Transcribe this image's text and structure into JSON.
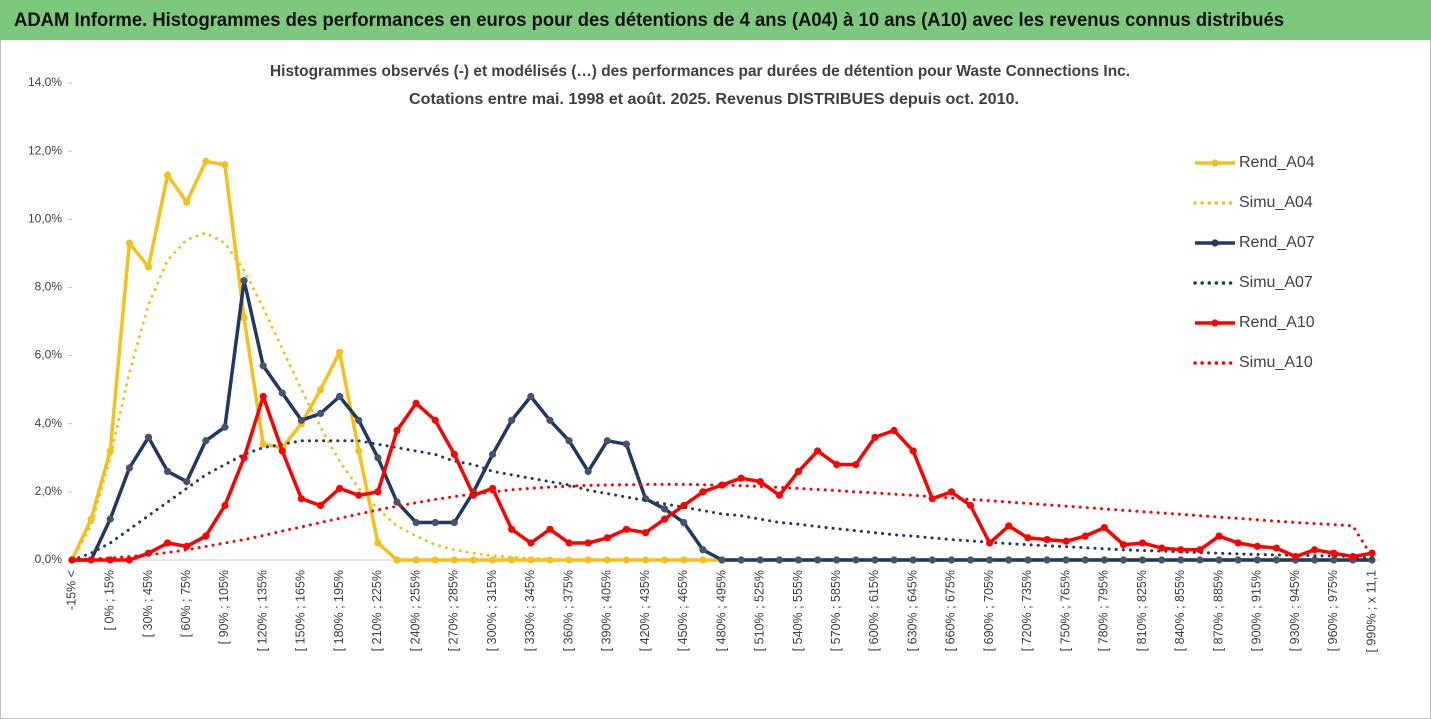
{
  "chart_data": {
    "type": "line",
    "title": "ADAM Informe. Histogrammes des performances en euros pour des détentions de 4 ans (A04) à 10 ans (A10) avec les revenus connus distribués",
    "subtitle": [
      "Histogrammes observés (-) et modélisés (…) des performances par durées de détention pour Waste Connections Inc.",
      "Cotations entre mai. 1998 et août. 2025. Revenus DISTRIBUES depuis oct. 2010."
    ],
    "categories": [
      "-15% <",
      null,
      "[ 0% ; 15%",
      null,
      "[ 30% ; 45%",
      null,
      "[ 60% ; 75%",
      null,
      "[ 90% ; 105%",
      null,
      "[ 120% ; 135%",
      null,
      "[ 150% ; 165%",
      null,
      "[ 180% ; 195%",
      null,
      "[ 210% ; 225%",
      null,
      "[ 240% ; 255%",
      null,
      "[ 270% ; 285%",
      null,
      "[ 300% ; 315%",
      null,
      "[ 330% ; 345%",
      null,
      "[ 360% ; 375%",
      null,
      "[ 390% ; 405%",
      null,
      "[ 420% ; 435%",
      null,
      "[ 450% ; 465%",
      null,
      "[ 480% ; 495%",
      null,
      "[ 510% ; 525%",
      null,
      "[ 540% ; 555%",
      null,
      "[ 570% ; 585%",
      null,
      "[ 600% ; 615%",
      null,
      "[ 630% ; 645%",
      null,
      "[ 660% ; 675%",
      null,
      "[ 690% ; 705%",
      null,
      "[ 720% ; 735%",
      null,
      "[ 750% ; 765%",
      null,
      "[ 780% ; 795%",
      null,
      "[ 810% ; 825%",
      null,
      "[ 840% ; 855%",
      null,
      "[ 870% ; 885%",
      null,
      "[ 900% ; 915%",
      null,
      "[ 930% ; 945%",
      null,
      "[ 960% ; 975%",
      null,
      "[ 990% ; x 11,1"
    ],
    "ylim": [
      0,
      14
    ],
    "yticks": [
      {
        "value": 0,
        "label": "0,0%"
      },
      {
        "value": 2,
        "label": "2,0%"
      },
      {
        "value": 4,
        "label": "4,0%"
      },
      {
        "value": 6,
        "label": "6,0%"
      },
      {
        "value": 8,
        "label": "8,0%"
      },
      {
        "value": 10,
        "label": "10,0%"
      },
      {
        "value": 12,
        "label": "12,0%"
      },
      {
        "value": 14,
        "label": "14,0%"
      }
    ],
    "legend": "right",
    "series": [
      {
        "name": "Rend_A04",
        "color": "#f5c01a",
        "style": "solid",
        "markers": true,
        "values": [
          0,
          1.2,
          3.2,
          9.3,
          8.6,
          11.3,
          10.5,
          11.7,
          11.6,
          7.1,
          3.4,
          3.3,
          4.0,
          5.0,
          6.1,
          3.2,
          0.5,
          0,
          0,
          0,
          0,
          0,
          0,
          0,
          0,
          0,
          0,
          0,
          0,
          0,
          0,
          0,
          0,
          0,
          0,
          0,
          0,
          0,
          0,
          0,
          0,
          0,
          0,
          0,
          0,
          0,
          0,
          0,
          0,
          0,
          0,
          0,
          0,
          0,
          0,
          0,
          0,
          0,
          0,
          0,
          0,
          0,
          0,
          0,
          0,
          0,
          0,
          0,
          0
        ]
      },
      {
        "name": "Simu_A04",
        "color": "#f5c01a",
        "style": "dotted",
        "markers": false,
        "values": [
          0,
          1.0,
          3.0,
          5.5,
          7.5,
          8.8,
          9.4,
          9.6,
          9.3,
          8.5,
          7.4,
          6.2,
          5.0,
          3.9,
          2.9,
          2.1,
          1.5,
          1.0,
          0.7,
          0.45,
          0.3,
          0.2,
          0.12,
          0.08,
          0.05,
          0.03,
          0,
          0,
          0,
          0,
          0,
          0,
          0,
          0,
          0,
          0,
          0,
          0,
          0,
          0,
          0,
          0,
          0,
          0,
          0,
          0,
          0,
          0,
          0,
          0,
          0,
          0,
          0,
          0,
          0,
          0,
          0,
          0,
          0,
          0,
          0,
          0,
          0,
          0,
          0,
          0,
          0,
          0,
          0
        ]
      },
      {
        "name": "Rend_A07",
        "color": "#1f3864",
        "style": "solid",
        "markers": true,
        "values": [
          0,
          0,
          1.2,
          2.7,
          3.6,
          2.6,
          2.3,
          3.5,
          3.9,
          8.2,
          5.7,
          4.9,
          4.1,
          4.3,
          4.8,
          4.1,
          3.0,
          1.7,
          1.1,
          1.1,
          1.1,
          2.0,
          3.1,
          4.1,
          4.8,
          4.1,
          3.5,
          2.6,
          3.5,
          3.4,
          1.8,
          1.5,
          1.1,
          0.3,
          0,
          0,
          0,
          0,
          0,
          0,
          0,
          0,
          0,
          0,
          0,
          0,
          0,
          0,
          0,
          0,
          0,
          0,
          0,
          0,
          0,
          0,
          0,
          0,
          0,
          0,
          0,
          0,
          0,
          0,
          0,
          0,
          0,
          0,
          0
        ]
      },
      {
        "name": "Simu_A07",
        "color": "#1f3864",
        "style": "dotted",
        "markers": false,
        "values": [
          0,
          0.2,
          0.5,
          0.9,
          1.3,
          1.7,
          2.1,
          2.5,
          2.8,
          3.1,
          3.3,
          3.4,
          3.5,
          3.5,
          3.5,
          3.5,
          3.4,
          3.3,
          3.2,
          3.1,
          2.9,
          2.8,
          2.6,
          2.5,
          2.4,
          2.3,
          2.2,
          2.05,
          1.95,
          1.85,
          1.75,
          1.65,
          1.55,
          1.45,
          1.35,
          1.3,
          1.2,
          1.1,
          1.05,
          0.98,
          0.92,
          0.86,
          0.8,
          0.74,
          0.7,
          0.65,
          0.6,
          0.56,
          0.52,
          0.48,
          0.45,
          0.42,
          0.39,
          0.36,
          0.33,
          0.3,
          0.28,
          0.26,
          0.24,
          0.22,
          0.2,
          0.18,
          0.16,
          0.15,
          0.14,
          0.13,
          0.12,
          0.1,
          0.05
        ]
      },
      {
        "name": "Rend_A10",
        "color": "#ff0000",
        "style": "solid",
        "markers": true,
        "values": [
          0,
          0,
          0,
          0,
          0.2,
          0.5,
          0.4,
          0.7,
          1.6,
          3.0,
          4.8,
          3.2,
          1.8,
          1.6,
          2.1,
          1.9,
          2.0,
          3.8,
          4.6,
          4.1,
          3.1,
          1.9,
          2.1,
          0.9,
          0.5,
          0.9,
          0.5,
          0.5,
          0.65,
          0.9,
          0.8,
          1.2,
          1.6,
          2.0,
          2.2,
          2.4,
          2.3,
          1.9,
          2.6,
          3.2,
          2.8,
          2.8,
          3.6,
          3.8,
          3.2,
          1.8,
          2.0,
          1.6,
          0.5,
          1.0,
          0.65,
          0.6,
          0.55,
          0.7,
          0.95,
          0.45,
          0.5,
          0.35,
          0.3,
          0.3,
          0.7,
          0.5,
          0.4,
          0.35,
          0.1,
          0.3,
          0.2,
          0.1,
          0.2
        ]
      },
      {
        "name": "Simu_A10",
        "color": "#ff0000",
        "style": "dotted",
        "markers": false,
        "values": [
          0,
          0.03,
          0.06,
          0.1,
          0.15,
          0.22,
          0.3,
          0.4,
          0.5,
          0.6,
          0.72,
          0.85,
          0.97,
          1.1,
          1.22,
          1.35,
          1.47,
          1.58,
          1.68,
          1.78,
          1.86,
          1.94,
          2.0,
          2.06,
          2.1,
          2.14,
          2.17,
          2.19,
          2.2,
          2.21,
          2.22,
          2.22,
          2.22,
          2.21,
          2.2,
          2.18,
          2.16,
          2.13,
          2.1,
          2.07,
          2.04,
          2.0,
          1.97,
          1.93,
          1.9,
          1.86,
          1.82,
          1.78,
          1.74,
          1.7,
          1.66,
          1.62,
          1.58,
          1.54,
          1.5,
          1.46,
          1.42,
          1.38,
          1.34,
          1.3,
          1.26,
          1.22,
          1.18,
          1.14,
          1.1,
          1.07,
          1.04,
          1.0,
          0.1
        ]
      }
    ]
  }
}
